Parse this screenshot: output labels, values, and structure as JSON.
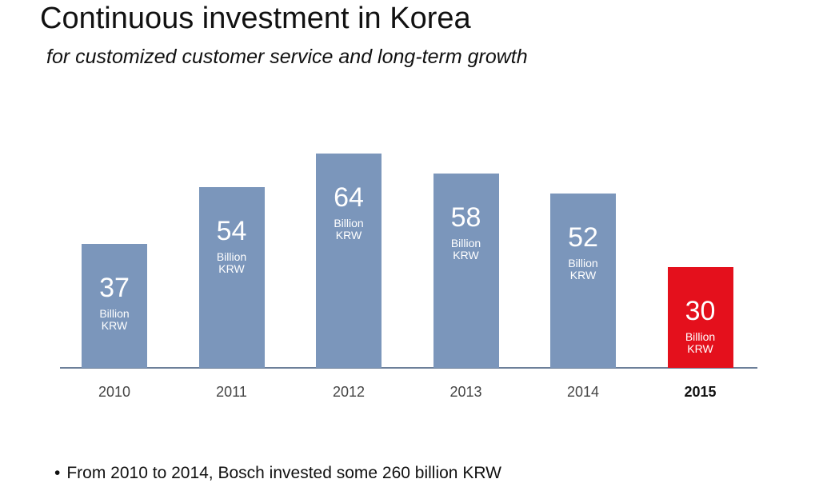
{
  "chart_data": {
    "type": "bar",
    "title": "Continuous investment in Korea",
    "subtitle": "for customized customer service and long-term growth",
    "categories": [
      "2010",
      "2011",
      "2012",
      "2013",
      "2014",
      "2015"
    ],
    "values": [
      37,
      54,
      64,
      58,
      52,
      30
    ],
    "value_unit": "Billion KRW",
    "color": "#7b96bb",
    "colors": [
      "#7b96bb",
      "#7b96bb",
      "#7b96bb",
      "#7b96bb",
      "#7b96bb",
      "#e4101c"
    ],
    "ylim": [
      0,
      100
    ],
    "note": "From 2010 to 2014, Bosch invested some 260 billion KRW"
  }
}
